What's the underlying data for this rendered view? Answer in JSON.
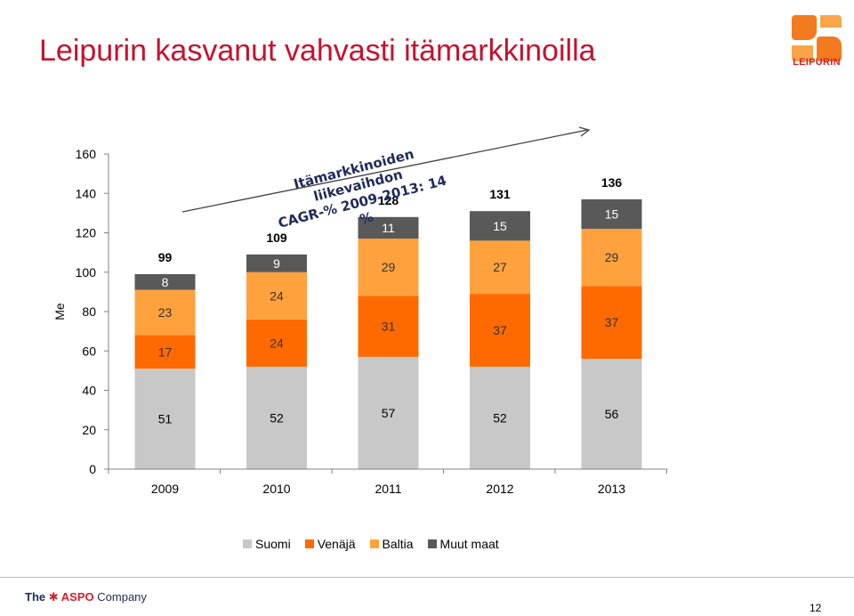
{
  "slide": {
    "title": "Leipurin kasvanut vahvasti itämarkkinoilla",
    "logo_text": "LEIPURIN",
    "annotation_line1": "Itämarkkinoiden liikevaihdon",
    "annotation_line2": "CAGR-% 2009-2013: 14 %",
    "footer_the": "The",
    "footer_aspo": "ASPO",
    "footer_company": "Company",
    "page_number": "12"
  },
  "colors": {
    "title": "#c8102e",
    "suomi": "#c8c8c8",
    "venaja": "#ff6a00",
    "baltia": "#ffa23d",
    "muut": "#595959",
    "logo": "#f47a20"
  },
  "chart_data": {
    "type": "bar",
    "stacked": true,
    "categories": [
      "2009",
      "2010",
      "2011",
      "2012",
      "2013"
    ],
    "ylabel": "Me",
    "ylim": [
      0,
      160
    ],
    "yticks": [
      0,
      20,
      40,
      60,
      80,
      100,
      120,
      140,
      160
    ],
    "series": [
      {
        "name": "Suomi",
        "values": [
          51,
          52,
          57,
          52,
          56
        ]
      },
      {
        "name": "Venäjä",
        "values": [
          17,
          24,
          31,
          37,
          37
        ]
      },
      {
        "name": "Baltia",
        "values": [
          23,
          24,
          29,
          27,
          29
        ]
      },
      {
        "name": "Muut maat",
        "values": [
          8,
          9,
          11,
          15,
          15
        ]
      }
    ],
    "totals": [
      99,
      109,
      128,
      131,
      136
    ],
    "legend_position": "bottom",
    "grid": false
  }
}
